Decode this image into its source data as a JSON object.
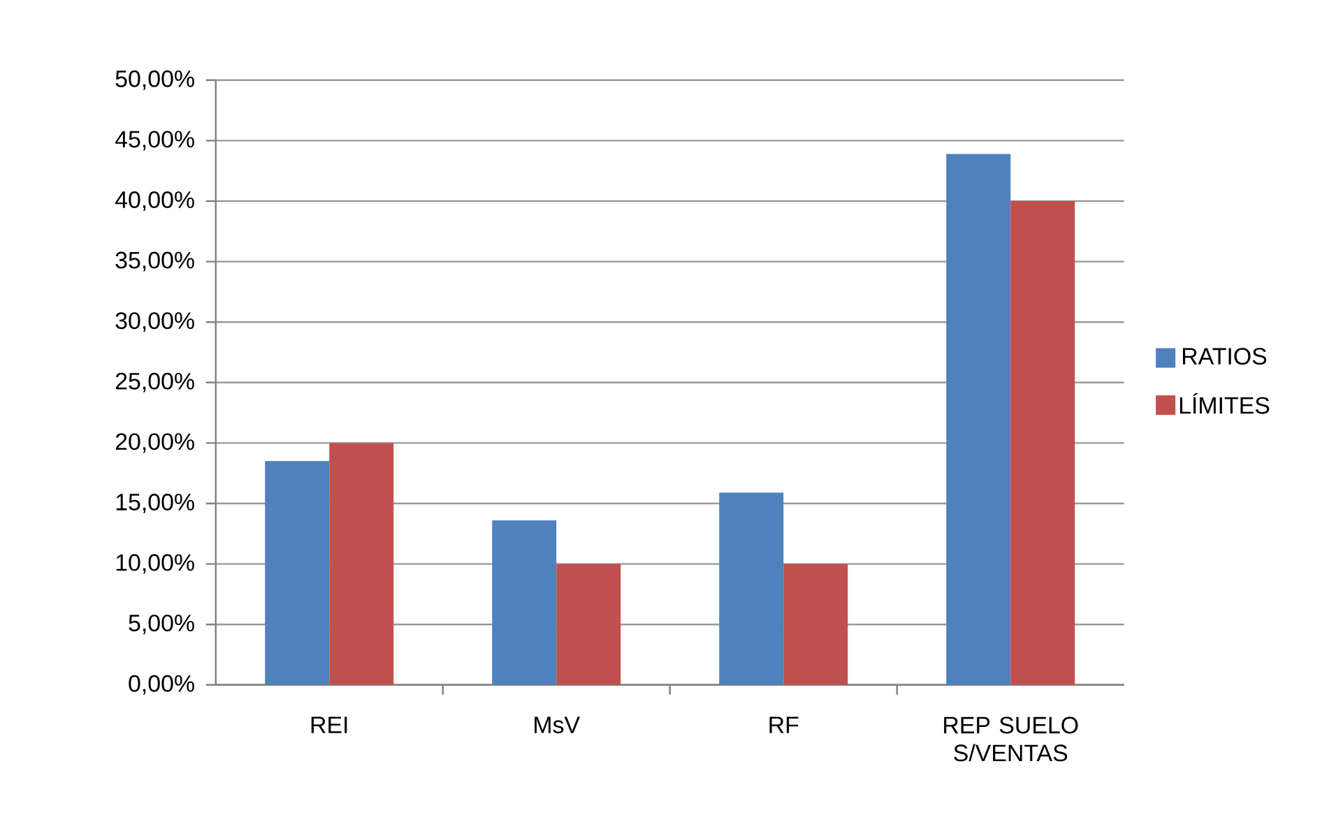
{
  "chart_data": {
    "type": "bar",
    "categories": [
      "REI",
      "MsV",
      "RF",
      "REP SUELO S/VENTAS"
    ],
    "series": [
      {
        "name": "RATIOS",
        "color": "#4f81bd",
        "values": [
          18.5,
          13.6,
          15.9,
          43.9
        ]
      },
      {
        "name": "LÍMITES",
        "color": "#c0504d",
        "values": [
          20,
          10,
          10,
          40
        ]
      }
    ],
    "ylim": [
      0,
      50
    ],
    "yticks": [
      {
        "value": 0,
        "label": "0,00%"
      },
      {
        "value": 5,
        "label": "5,00%"
      },
      {
        "value": 10,
        "label": "10,00%"
      },
      {
        "value": 15,
        "label": "15,00%"
      },
      {
        "value": 20,
        "label": "20,00%"
      },
      {
        "value": 25,
        "label": "25,00%"
      },
      {
        "value": 30,
        "label": "30,00%"
      },
      {
        "value": 35,
        "label": "35,00%"
      },
      {
        "value": 40,
        "label": "40,00%"
      },
      {
        "value": 45,
        "label": "45,00%"
      },
      {
        "value": 50,
        "label": "50,00%"
      }
    ],
    "grid": "y",
    "legend": "right"
  }
}
